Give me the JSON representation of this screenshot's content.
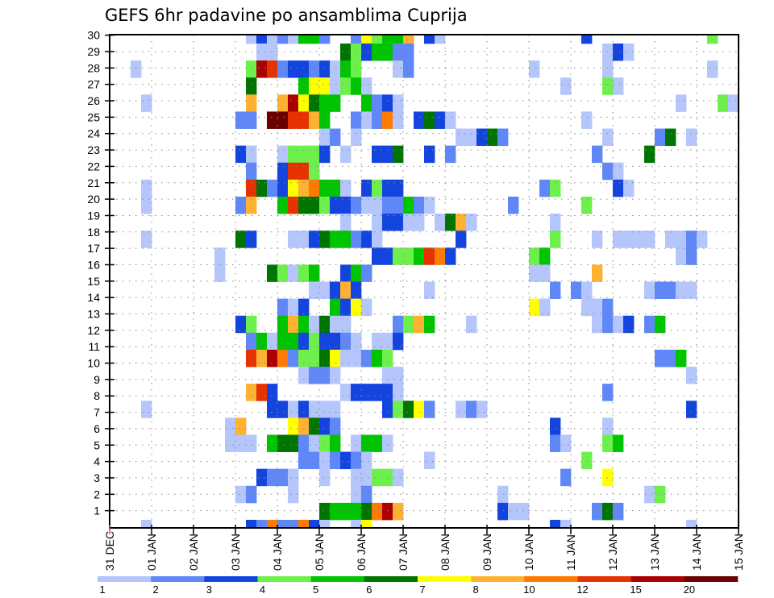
{
  "chart_data": {
    "type": "heatmap",
    "title": "GEFS 6hr padavine po ansamblima Cuprija",
    "xlabel": "",
    "ylabel": "",
    "x_step_hours": 6,
    "x_steps": 60,
    "x_tick_labels": [
      "31 DEC",
      "01 JAN",
      "02 JAN",
      "03 JAN",
      "04 JAN",
      "05 JAN",
      "06 JAN",
      "07 JAN",
      "08 JAN",
      "09 JAN",
      "10 JAN",
      "11 JAN",
      "12 JAN",
      "13 JAN",
      "14 JAN",
      "15 JAN"
    ],
    "y_tick_labels": [
      "1",
      "2",
      "3",
      "4",
      "5",
      "6",
      "7",
      "8",
      "9",
      "10",
      "11",
      "12",
      "13",
      "14",
      "15",
      "16",
      "17",
      "18",
      "19",
      "20",
      "21",
      "22",
      "23",
      "24",
      "25",
      "26",
      "27",
      "28",
      "29",
      "30"
    ],
    "grid": true,
    "legend_placement": "bottom",
    "colorbar_labels": [
      "1",
      "2",
      "3",
      "4",
      "5",
      "6",
      "7",
      "8",
      "10",
      "12",
      "15",
      "20"
    ],
    "levels": {
      "a": {
        "min": 1,
        "color": "#b4c6fb"
      },
      "b": {
        "min": 2,
        "color": "#5f87f7"
      },
      "c": {
        "min": 3,
        "color": "#1444de"
      },
      "d": {
        "min": 4,
        "color": "#6ef04c"
      },
      "e": {
        "min": 5,
        "color": "#00c400"
      },
      "f": {
        "min": 6,
        "color": "#007400"
      },
      "g": {
        "min": 7,
        "color": "#ffff00"
      },
      "h": {
        "min": 8,
        "color": "#ffb232"
      },
      "i": {
        "min": 10,
        "color": "#ff7a00"
      },
      "j": {
        "min": 12,
        "color": "#e63200"
      },
      "k": {
        "min": 15,
        "color": "#aa0000"
      },
      "l": {
        "min": 20,
        "color": "#6a0000"
      }
    },
    "rows_top_to_bottom": [
      "13a 14c 15a 16b 17a 18e 19e 20b 23b 24g 25d 26e 27e 28h 30c 31a 45c 57d",
      "14a 15a 22f 23d 24c 25e 26e 27b 28b 47a 48c 49a",
      "2a 13d 14k 15j 16b 17c 18c 19b 20c 21a 22e 23d 27a 28b 40a 47a 57a",
      "13f 18e 19g 20g 21a 22d 23e 24a 43a 47d 48a",
      "3a 13h 16h 17k 18g 19f 20e 21e 24e 25b 26c 27a 54a 58d 59a",
      "12b 13b 15l 16l 17j 18j 19h 20e 23b 24a 25b 26i 27a 29c 30f 31c 32a 45a",
      "20a 21b 23a 33a 34a 35c 36f 37b 47a 52b 53f 55a",
      "12c 13a 16a 17d 18d 19d 20c 22a 25c 26c 27f 30c 32b 46b 51f",
      "13b 16c 17j 18j 19d 47b 48a",
      "3a 13j 14f 15b 16c 17g 18h 19i 20e 21e 22a 24c 25d 26c 27c 41b 42d 48c 49a",
      "3a 12b 13h 16e 17j 18f 19f 20d 21c 22c 23b 24a 25a 26b 27b 28e 29b 30a 38b 45d",
      "22a 25a 26c 27c 28a 29a 31a 32f 33h 34a 42a",
      "3a 12f 13c 17a 18a 19c 20f 21e 22e 23b 24c 25a 33c 42d 46a 48a 49a 50a 51a 53a 54a 55b 56a",
      "10a 25c 26c 27d 28d 29e 30j 31i 32c 40d 41e 54a 55b",
      "10a 15f 16d 17a 18d 19e 22c 23e 24b 40a 41a 46h",
      "19a 20a 21c 22h 23c 30a 42b 44b 45a 51a 52b 53b 54a 55a",
      "16b 17a 18c 21e 22c 23g 24a 40g 41a 45a 46a 47b",
      "12c 13d 16e 17h 18e 19a 20f 21a 22a 27b 28d 29h 30e 34a 46a 47b 48a 49c 51b 52e",
      "13b 14e 15a 16e 17e 18c 19d 20c 21c 22b 23a 25a 26a 27c",
      "13j 14h 15k 16i 17b 18d 19d 20f 21g 22a 23a 24b 25e 26d 52b 53b 54e",
      "18a 19b 20b 21a 26a 27a 55a",
      "13h 14j 15c 22a 23c 24c 25c 26c 27a 47b",
      "3a 15c 16c 17a 18c 19a 20a 21a 26c 27d 28f 29g 30b 33a 34b 35a 55c",
      "11a 12h 17g 18h 19f 20c 21b 42c 47a",
      "11a 12a 13a 15e 16f 17f 18b 19a 20d 21e 23a 24e 25e 26a 42b 43a 47d 48e",
      "18b 19b 20a 21b 22c 23b 24a 30a 45d",
      "14c 15b 16b 17a 20a 23a 24a 25d 26d 27a 43b 47g",
      "12a 13b 17a 23a 24b 37a 51a 52d",
      "20f 21e 22e 23e 24f 25i 26k 27h 37c 38a 39a 46b 47f 48b",
      "3a 13c 14b 15i 16b 17b 18i 19c 20a 23a 24g 42c 43a 55a"
    ]
  }
}
